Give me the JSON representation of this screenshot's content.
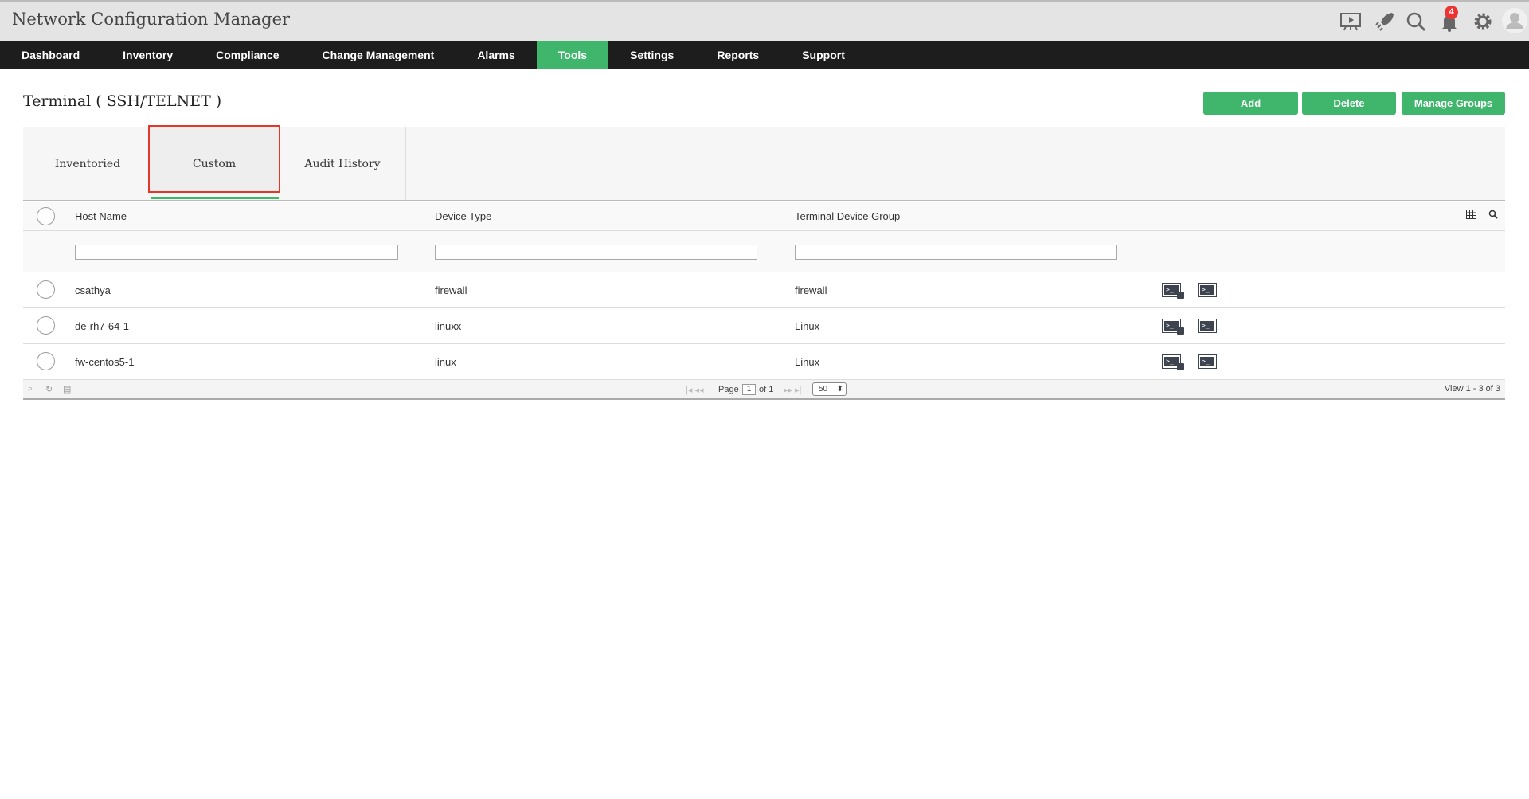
{
  "app": {
    "title": "Network Configuration Manager",
    "notification_count": "4"
  },
  "nav": [
    "Dashboard",
    "Inventory",
    "Compliance",
    "Change Management",
    "Alarms",
    "Tools",
    "Settings",
    "Reports",
    "Support"
  ],
  "nav_active": "Tools",
  "page": {
    "title": "Terminal ( SSH/TELNET )"
  },
  "actions": {
    "add": "Add",
    "delete": "Delete",
    "manage_groups": "Manage Groups"
  },
  "tabs": [
    "Inventoried",
    "Custom",
    "Audit History"
  ],
  "active_tab": "Custom",
  "table": {
    "columns": [
      "Host Name",
      "Device Type",
      "Terminal Device Group"
    ],
    "rows": [
      {
        "host": "csathya",
        "type": "firewall",
        "group": "firewall"
      },
      {
        "host": "de-rh7-64-1",
        "type": "linuxx",
        "group": "Linux"
      },
      {
        "host": "fw-centos5-1",
        "type": "linux",
        "group": "Linux"
      }
    ]
  },
  "pager": {
    "page_label": "Page",
    "page": "1",
    "of_label": "of 1",
    "page_size": "50",
    "view": "View 1 - 3 of 3"
  },
  "colors": {
    "accent": "#3fb66b",
    "highlight": "#e5362a",
    "nav_bg": "#1d1d1d"
  }
}
